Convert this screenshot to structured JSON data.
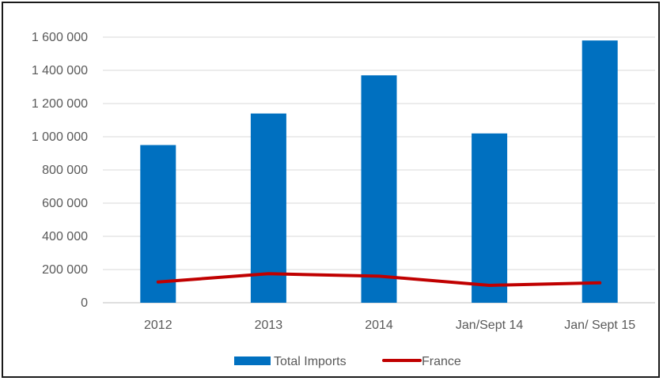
{
  "chart_data": {
    "type": "bar",
    "categories": [
      "2012",
      "2013",
      "2014",
      "Jan/Sept 14",
      "Jan/ Sept 15"
    ],
    "series": [
      {
        "name": "Total Imports",
        "kind": "bar",
        "color": "#0070c0",
        "values": [
          950000,
          1140000,
          1370000,
          1020000,
          1580000
        ]
      },
      {
        "name": "France",
        "kind": "line",
        "color": "#c00000",
        "values": [
          125000,
          175000,
          160000,
          105000,
          120000
        ]
      }
    ],
    "ylim": [
      0,
      1600000
    ],
    "yticks": [
      0,
      200000,
      400000,
      600000,
      800000,
      1000000,
      1200000,
      1400000,
      1600000
    ],
    "ytick_labels": [
      "0",
      "200 000",
      "400 000",
      "600 000",
      "800 000",
      "1 000 000",
      "1 200 000",
      "1 400 000",
      "1 600 000"
    ],
    "grid": true,
    "legend_position": "bottom"
  }
}
